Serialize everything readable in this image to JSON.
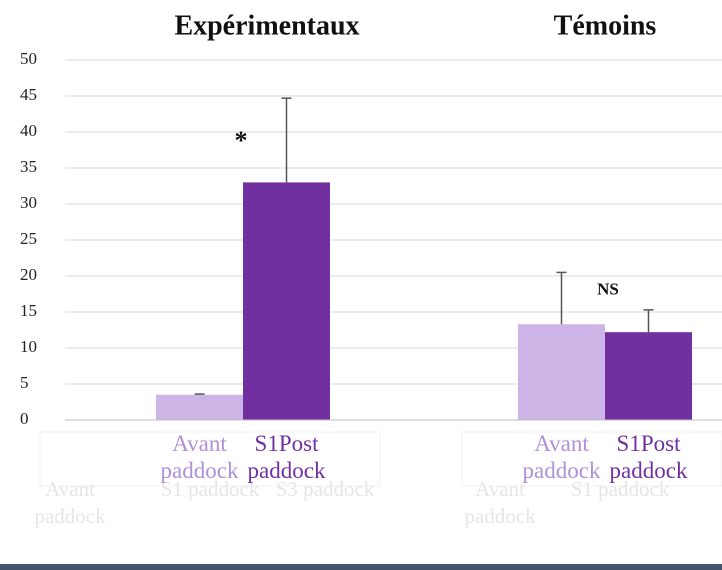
{
  "chart_data": {
    "type": "bar",
    "categories": [
      "Expérimentaux",
      "Témoins"
    ],
    "series": [
      {
        "name": "Avant paddock",
        "color": "#cdb4e6",
        "label_color": "#b08fd8",
        "values": [
          3.5,
          13.3
        ],
        "errors": [
          0.1,
          7.2
        ]
      },
      {
        "name": "S1Post paddock",
        "color": "#7030a0",
        "label_color": "#7030a0",
        "values": [
          33,
          12.2
        ],
        "errors": [
          11.7,
          3.1
        ]
      }
    ],
    "annotations": [
      "*",
      "NS"
    ],
    "background_labels": [
      "Avant paddock",
      "S1 paddock",
      "S3 paddock",
      "Avant paddock",
      "S1 paddock"
    ],
    "ylim": [
      0,
      50
    ],
    "yticks": [
      0,
      5,
      10,
      15,
      20,
      25,
      30,
      35,
      40,
      45,
      50
    ],
    "grid": true
  }
}
